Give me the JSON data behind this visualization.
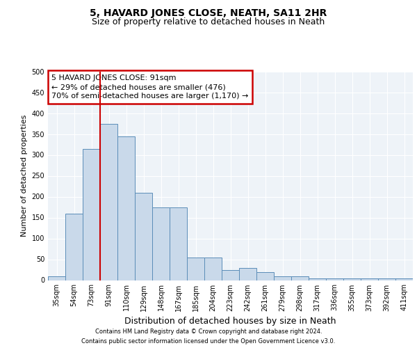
{
  "title": "5, HAVARD JONES CLOSE, NEATH, SA11 2HR",
  "subtitle": "Size of property relative to detached houses in Neath",
  "xlabel": "Distribution of detached houses by size in Neath",
  "ylabel": "Number of detached properties",
  "categories": [
    "35sqm",
    "54sqm",
    "73sqm",
    "91sqm",
    "110sqm",
    "129sqm",
    "148sqm",
    "167sqm",
    "185sqm",
    "204sqm",
    "223sqm",
    "242sqm",
    "261sqm",
    "279sqm",
    "298sqm",
    "317sqm",
    "336sqm",
    "355sqm",
    "373sqm",
    "392sqm",
    "411sqm"
  ],
  "values": [
    10,
    160,
    315,
    375,
    345,
    210,
    175,
    175,
    55,
    55,
    25,
    30,
    20,
    10,
    10,
    5,
    5,
    5,
    5,
    5,
    5
  ],
  "bar_color": "#c9d9ea",
  "bar_edge_color": "#5b8db8",
  "property_line_index": 3,
  "annotation_title": "5 HAVARD JONES CLOSE: 91sqm",
  "annotation_line1": "← 29% of detached houses are smaller (476)",
  "annotation_line2": "70% of semi-detached houses are larger (1,170) →",
  "annotation_box_color": "#ffffff",
  "annotation_box_edge_color": "#cc0000",
  "vline_color": "#cc0000",
  "ylim": [
    0,
    500
  ],
  "yticks": [
    0,
    50,
    100,
    150,
    200,
    250,
    300,
    350,
    400,
    450,
    500
  ],
  "footer1": "Contains HM Land Registry data © Crown copyright and database right 2024.",
  "footer2": "Contains public sector information licensed under the Open Government Licence v3.0.",
  "bg_color": "#eef3f8",
  "fig_bg_color": "#ffffff",
  "title_fontsize": 10,
  "subtitle_fontsize": 9,
  "xlabel_fontsize": 9,
  "ylabel_fontsize": 8,
  "tick_fontsize": 7,
  "footer_fontsize": 6,
  "annot_fontsize": 8
}
